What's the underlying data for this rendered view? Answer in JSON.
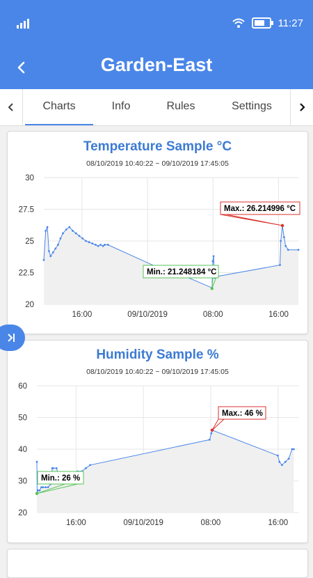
{
  "status_bar": {
    "time": "11:27",
    "icons": [
      "signal-icon",
      "wifi-icon",
      "battery-icon"
    ]
  },
  "app_bar": {
    "title": "Garden-East",
    "back_icon": "back-chevron-icon"
  },
  "tabs": {
    "items": [
      {
        "label": "Charts",
        "active": true
      },
      {
        "label": "Info",
        "active": false
      },
      {
        "label": "Rules",
        "active": false
      },
      {
        "label": "Settings",
        "active": false
      }
    ]
  },
  "colors": {
    "accent": "#4a86e8",
    "line": "#4a86e8",
    "max": "#d9302c",
    "min": "#55c455",
    "fill": "#f0f0f0"
  },
  "chart_data": [
    {
      "type": "line",
      "title": "Temperature Sample °C",
      "range": "08/10/2019 10:40:22 ~ 09/10/2019 17:45:05",
      "x_ticks": [
        {
          "label": "16:00",
          "x": 5.33
        },
        {
          "label": "09/10/2019",
          "x": 13.33
        },
        {
          "label": "08:00",
          "x": 21.33
        },
        {
          "label": "16:00",
          "x": 29.33
        }
      ],
      "xlim": [
        0.67,
        31.75
      ],
      "ylim": [
        20,
        30
      ],
      "y_ticks": [
        20,
        22.5,
        25,
        27.5,
        30
      ],
      "grid": true,
      "max_label": "Max.: 26.214996 °C",
      "max_point": {
        "x": 29.8,
        "y": 26.215
      },
      "min_label": "Min.: 21.248184 °C",
      "min_point": {
        "x": 21.2,
        "y": 21.248
      },
      "series": [
        {
          "x": [
            0.67,
            0.9,
            1.1,
            1.3,
            1.5,
            1.8,
            2.1,
            2.4,
            2.7,
            3.0,
            3.4,
            3.8,
            4.2,
            4.6,
            5.0,
            5.4,
            5.8,
            6.2,
            6.6,
            7.0,
            7.3,
            7.6,
            7.9,
            8.1,
            8.5,
            14.3,
            16.5,
            21.2,
            21.3,
            21.4,
            21.5,
            21.6,
            21.8,
            29.5,
            29.6,
            29.8,
            30.0,
            30.2,
            30.5,
            31.75
          ],
          "y": [
            23.5,
            25.8,
            26.1,
            24.2,
            23.8,
            24.1,
            24.4,
            24.7,
            25.2,
            25.6,
            25.9,
            26.1,
            25.8,
            25.6,
            25.4,
            25.2,
            25.0,
            24.9,
            24.8,
            24.7,
            24.6,
            24.7,
            24.6,
            24.7,
            24.7,
            23.0,
            22.6,
            21.3,
            23.4,
            23.8,
            22.1,
            22.1,
            22.2,
            23.1,
            25.0,
            26.215,
            25.3,
            24.6,
            24.3,
            24.3
          ]
        }
      ]
    },
    {
      "type": "line",
      "title": "Humidity Sample %",
      "range": "08/10/2019 10:40:22 ~ 09/10/2019 17:45:05",
      "x_ticks": [
        {
          "label": "16:00",
          "x": 5.33
        },
        {
          "label": "09/10/2019",
          "x": 13.33
        },
        {
          "label": "08:00",
          "x": 21.33
        },
        {
          "label": "16:00",
          "x": 29.33
        }
      ],
      "xlim": [
        0.67,
        31.75
      ],
      "ylim": [
        20,
        60
      ],
      "y_ticks": [
        20,
        30,
        40,
        50,
        60
      ],
      "grid": true,
      "max_label": "Max.: 46 %",
      "max_point": {
        "x": 21.5,
        "y": 46
      },
      "min_label": "Min.: 26 %",
      "min_point": {
        "x": 0.67,
        "y": 26
      },
      "series": [
        {
          "x": [
            0.67,
            0.7,
            0.8,
            1.0,
            1.2,
            1.4,
            1.7,
            2.0,
            2.3,
            2.5,
            2.6,
            3.0,
            3.5,
            4.0,
            4.5,
            5.0,
            5.5,
            6.0,
            6.5,
            7.0,
            21.2,
            21.4,
            21.5,
            29.3,
            29.5,
            29.8,
            30.2,
            30.6,
            31.0,
            31.2
          ],
          "y": [
            36,
            26,
            27,
            27,
            28,
            28,
            28,
            28,
            29,
            34,
            34,
            34,
            30,
            31,
            31,
            32,
            33,
            33,
            34,
            35,
            43,
            45,
            46,
            38,
            36,
            35,
            36,
            37,
            40,
            40
          ]
        }
      ]
    }
  ]
}
